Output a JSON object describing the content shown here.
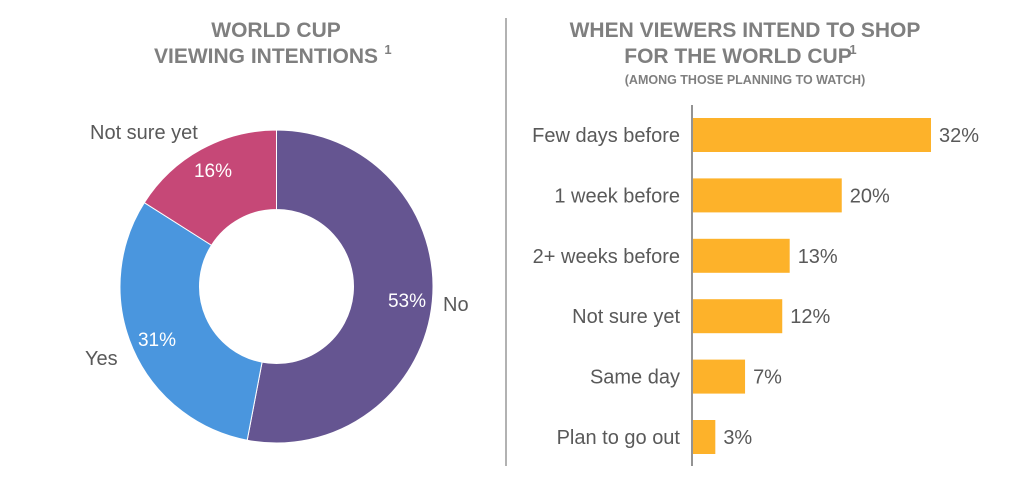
{
  "chart_data": [
    {
      "type": "pie",
      "variant": "donut",
      "title": "WORLD CUP VIEWING INTENTIONS",
      "title_lines": [
        "WORLD CUP",
        "VIEWING INTENTIONS"
      ],
      "title_footnote": "1",
      "slices": [
        {
          "label": "No",
          "value": 53,
          "value_label": "53%",
          "color": "#655591"
        },
        {
          "label": "Yes",
          "value": 31,
          "value_label": "31%",
          "color": "#4A96DE"
        },
        {
          "label": "Not sure yet",
          "value": 16,
          "value_label": "16%",
          "color": "#C64877"
        }
      ]
    },
    {
      "type": "bar",
      "orientation": "horizontal",
      "title": "WHEN VIEWERS INTEND TO SHOP FOR THE WORLD CUP",
      "title_lines": [
        "WHEN VIEWERS INTEND TO SHOP",
        "FOR THE WORLD CUP"
      ],
      "title_footnote": "1",
      "subtitle": "(AMONG THOSE PLANNING TO WATCH)",
      "categories": [
        "Few days before",
        "1 week before",
        "2+ weeks before",
        "Not sure yet",
        "Same day",
        "Plan to go out"
      ],
      "values": [
        32,
        20,
        13,
        12,
        7,
        3
      ],
      "value_labels": [
        "32%",
        "20%",
        "13%",
        "12%",
        "7%",
        "3%"
      ],
      "color": "#FDB22A",
      "xlim": [
        0,
        32
      ],
      "grid": false
    }
  ]
}
